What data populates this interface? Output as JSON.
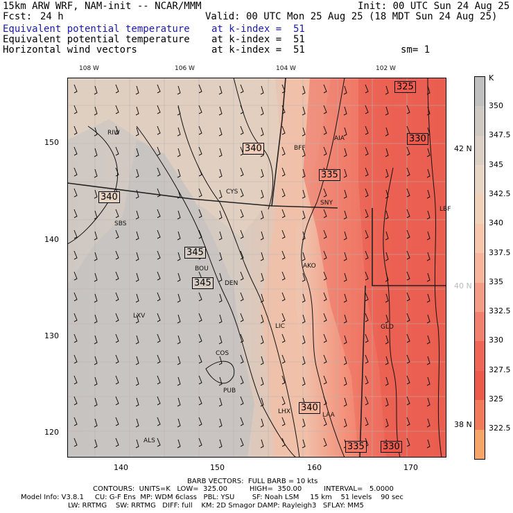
{
  "header": {
    "model": "15km ARW WRF, NAM-init -- NCAR/MMM",
    "init": "Init: 00 UTC Sun 24 Aug 25",
    "fcst_label": "Fcst:",
    "fcst_value": "24 h",
    "valid": "Valid: 00 UTC Mon 25 Aug 25 (18 MDT Sun 24 Aug 25)",
    "fields": [
      {
        "name": "Equivalent potential temperature",
        "level": "at k-index =  51"
      },
      {
        "name": "Equivalent potential temperature",
        "level": "at k-index =  51"
      },
      {
        "name": "Horizontal wind vectors",
        "level": "at k-index =  51"
      }
    ],
    "smoothing": "sm= 1"
  },
  "map": {
    "top_lon_labels": [
      "108 W",
      "106 W",
      "104 W",
      "102 W"
    ],
    "right_lat_labels": [
      "42 N",
      "40 N",
      "38 N"
    ],
    "x_ticks": [
      "140",
      "150",
      "160",
      "170"
    ],
    "y_ticks": [
      "150",
      "140",
      "130",
      "120"
    ],
    "stations": [
      "RIW",
      "BFF",
      "AIA",
      "CYS",
      "SNY",
      "LBF",
      "SBS",
      "BOU",
      "DEN",
      "AKO",
      "LXV",
      "LIC",
      "GLD",
      "COS",
      "PUB",
      "LHX",
      "LAA",
      "ALS"
    ],
    "contour_labels": [
      "325",
      "330",
      "340",
      "335",
      "340",
      "345",
      "345",
      "340",
      "335",
      "330"
    ]
  },
  "colorbar": {
    "unit": "K",
    "labels": [
      "350",
      "347.5",
      "345",
      "342.5",
      "340",
      "337.5",
      "335",
      "332.5",
      "330",
      "327.5",
      "325",
      "322.5"
    ],
    "colors": [
      "#c0c0c0",
      "#cfc9c3",
      "#dccfc3",
      "#e8d5c3",
      "#f0d2bb",
      "#f6c7ac",
      "#f7b59c",
      "#f59c86",
      "#f2806e",
      "#ef6656",
      "#ed5a4a",
      "#f07a5a",
      "#f7a468"
    ]
  },
  "footer": {
    "barbs": "BARB VECTORS:  FULL BARB = 10 kts",
    "contours": "CONTOURS:  UNITS=K   LOW=  325.00          HIGH=  350.00          INTERVAL=   5.0000",
    "model_info_1": "Model Info: V3.8.1     CU: G-F Ens  MP: WDM 6class   PBL: YSU        SF: Noah LSM     15 km    51 levels    90 sec",
    "model_info_2": "LW: RRTMG    SW: RRTMG   DIFF: full    KM: 2D Smagor DAMP: Rayleigh3   SFLAY: MM5"
  }
}
